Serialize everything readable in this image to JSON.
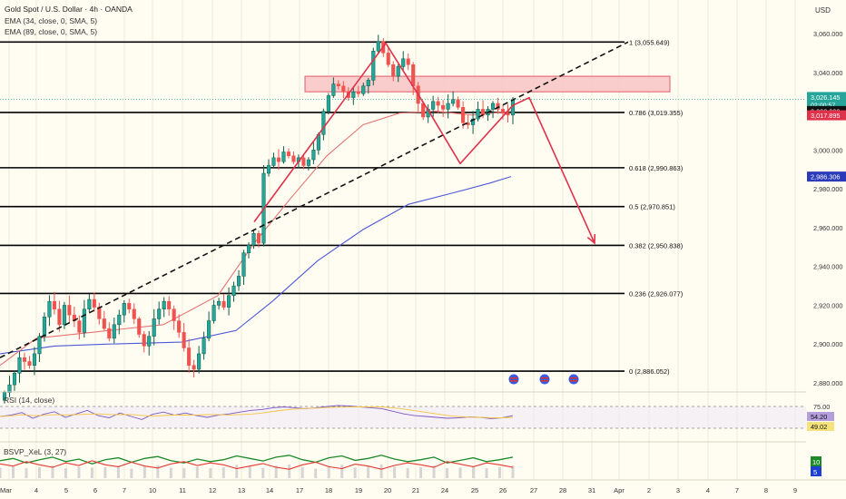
{
  "header": {
    "title": "Gold Spot / U.S. Dollar · 4h · OANDA",
    "indicators": [
      "EMA (34, close, 0, SMA, 5)",
      "EMA (89, close, 0, SMA, 5)"
    ],
    "currency": "USD"
  },
  "colors": {
    "background": "#fffdf2",
    "up": "#26a69a",
    "up_dark": "#0b5e49",
    "down": "#ef5350",
    "ema34": "#e57373",
    "ema89": "#4c59d8",
    "fib_line": "#000000",
    "projection": "#e0314b",
    "trend": "#111111",
    "resistance_fill": "#f7c8c8",
    "resistance_stroke": "#e05a6a"
  },
  "price_axis": {
    "ticks": [
      "3,060.000",
      "3,040.000",
      "3,020.000",
      "3,000.000",
      "2,980.000",
      "2,960.000",
      "2,940.000",
      "2,920.000",
      "2,900.000",
      "2,880.000"
    ],
    "badges": [
      {
        "label": "3,026.145",
        "sub": "02:00:57",
        "color": "#26a69a",
        "value": 3026.145
      },
      {
        "label": "3,020.090",
        "color": "#111111",
        "value": 3020.09
      },
      {
        "label": "3,017.895",
        "color": "#e0314b",
        "value": 3017.895
      },
      {
        "label": "2,986.306",
        "color": "#2b3ab8",
        "value": 2986.306
      }
    ]
  },
  "time_axis": {
    "labels": [
      "Mar",
      "4",
      "5",
      "6",
      "7",
      "10",
      "11",
      "12",
      "13",
      "14",
      "17",
      "18",
      "19",
      "20",
      "21",
      "24",
      "25",
      "26",
      "27",
      "28",
      "31",
      "Apr",
      "2",
      "3",
      "4",
      "7",
      "8",
      "9"
    ]
  },
  "chart_data": {
    "type": "candlestick",
    "interval": "4h",
    "ylim": [
      2870,
      3068
    ],
    "fibonacci_levels": [
      {
        "label": "1 (3,055.649)",
        "value": 3055.649
      },
      {
        "label": "0.786 (3,019.355)",
        "value": 3019.355
      },
      {
        "label": "0.618 (2,990.863)",
        "value": 2990.863
      },
      {
        "label": "0.5 (2,970.851)",
        "value": 2970.851
      },
      {
        "label": "0.382 (2,950.838)",
        "value": 2950.838
      },
      {
        "label": "0.236 (2,926.077)",
        "value": 2926.077
      },
      {
        "label": "0 (2,886.052)",
        "value": 2886.052
      }
    ],
    "candles_close": [
      2875,
      2879,
      2885,
      2893,
      2891,
      2889,
      2895,
      2904,
      2914,
      2922,
      2918,
      2910,
      2920,
      2915,
      2912,
      2906,
      2918,
      2923,
      2919,
      2913,
      2908,
      2903,
      2910,
      2915,
      2921,
      2918,
      2913,
      2905,
      2899,
      2904,
      2913,
      2918,
      2922,
      2918,
      2912,
      2906,
      2898,
      2889,
      2887,
      2895,
      2903,
      2912,
      2920,
      2922,
      2919,
      2925,
      2930,
      2935,
      2947,
      2951,
      2957,
      2952,
      2988,
      2992,
      2996,
      2994,
      2999,
      2997,
      2994,
      2996,
      2992,
      2995,
      3000,
      3008,
      3020,
      3028,
      3034,
      3033,
      3030,
      3027,
      3030,
      3029,
      3033,
      3036,
      3051,
      3056,
      3050,
      3044,
      3038,
      3043,
      3047,
      3044,
      3033,
      3024,
      3017,
      3021,
      3025,
      3023,
      3021,
      3024,
      3026,
      3022,
      3014,
      3013,
      3016,
      3021,
      3018,
      3021,
      3024,
      3021,
      3019,
      3018,
      3026
    ],
    "ema34": [
      [
        0,
        2889
      ],
      [
        40,
        2903
      ],
      [
        100,
        2906
      ],
      [
        180,
        2910
      ],
      [
        240,
        2925
      ],
      [
        280,
        2952
      ],
      [
        320,
        2975
      ],
      [
        360,
        2997
      ],
      [
        400,
        3013
      ],
      [
        440,
        3019
      ],
      [
        480,
        3020
      ],
      [
        520,
        3018
      ],
      [
        565,
        3020
      ]
    ],
    "ema89": [
      [
        0,
        2895
      ],
      [
        60,
        2899
      ],
      [
        120,
        2900
      ],
      [
        200,
        2901
      ],
      [
        260,
        2907
      ],
      [
        300,
        2922
      ],
      [
        350,
        2943
      ],
      [
        400,
        2959
      ],
      [
        450,
        2972
      ],
      [
        500,
        2978
      ],
      [
        540,
        2983
      ],
      [
        563,
        2986.3
      ]
    ],
    "resistance_zone": [
      3030,
      3038
    ],
    "trendline": [
      [
        0,
        2893
      ],
      [
        692,
        3055.649
      ]
    ],
    "wave_path": [
      [
        280,
        2963
      ],
      [
        425,
        3055
      ],
      [
        475,
        3018
      ],
      [
        507,
        2993
      ],
      [
        565,
        3023
      ],
      [
        583,
        3027
      ],
      [
        655,
        2952
      ]
    ],
    "event_icons": 3,
    "rsi": {
      "label": "RSI (14, close)",
      "value": "54.20",
      "signal": "49.02",
      "levels": [
        "75.00",
        "25.00"
      ],
      "values": [
        52,
        55,
        61,
        48,
        57,
        63,
        50,
        58,
        66,
        54,
        49,
        60,
        52,
        45,
        57,
        62,
        55,
        60,
        54,
        50,
        55,
        58,
        62,
        66,
        68,
        72,
        74,
        72,
        70,
        72,
        75,
        77,
        76,
        74,
        72,
        70,
        64,
        58,
        54,
        52,
        50,
        48,
        49,
        51,
        50,
        47,
        49,
        54
      ]
    },
    "bsvp": {
      "label": "BSVP_XeL (3, 27)",
      "badge_up": "10",
      "badge_down": "5",
      "green": [
        55,
        62,
        48,
        58,
        66,
        52,
        60,
        45,
        58,
        64,
        50,
        62,
        68,
        55,
        48,
        60,
        52,
        58,
        70,
        62,
        54,
        66,
        72,
        58,
        50,
        64,
        70,
        56,
        62,
        72,
        60,
        52,
        58,
        66,
        48,
        56,
        64,
        52,
        58,
        66
      ],
      "red": [
        45,
        38,
        52,
        42,
        34,
        48,
        40,
        55,
        42,
        36,
        50,
        38,
        32,
        45,
        52,
        40,
        48,
        42,
        30,
        38,
        46,
        34,
        28,
        42,
        50,
        36,
        30,
        44,
        38,
        28,
        40,
        48,
        42,
        34,
        52,
        44,
        36,
        48,
        42,
        34
      ]
    }
  }
}
